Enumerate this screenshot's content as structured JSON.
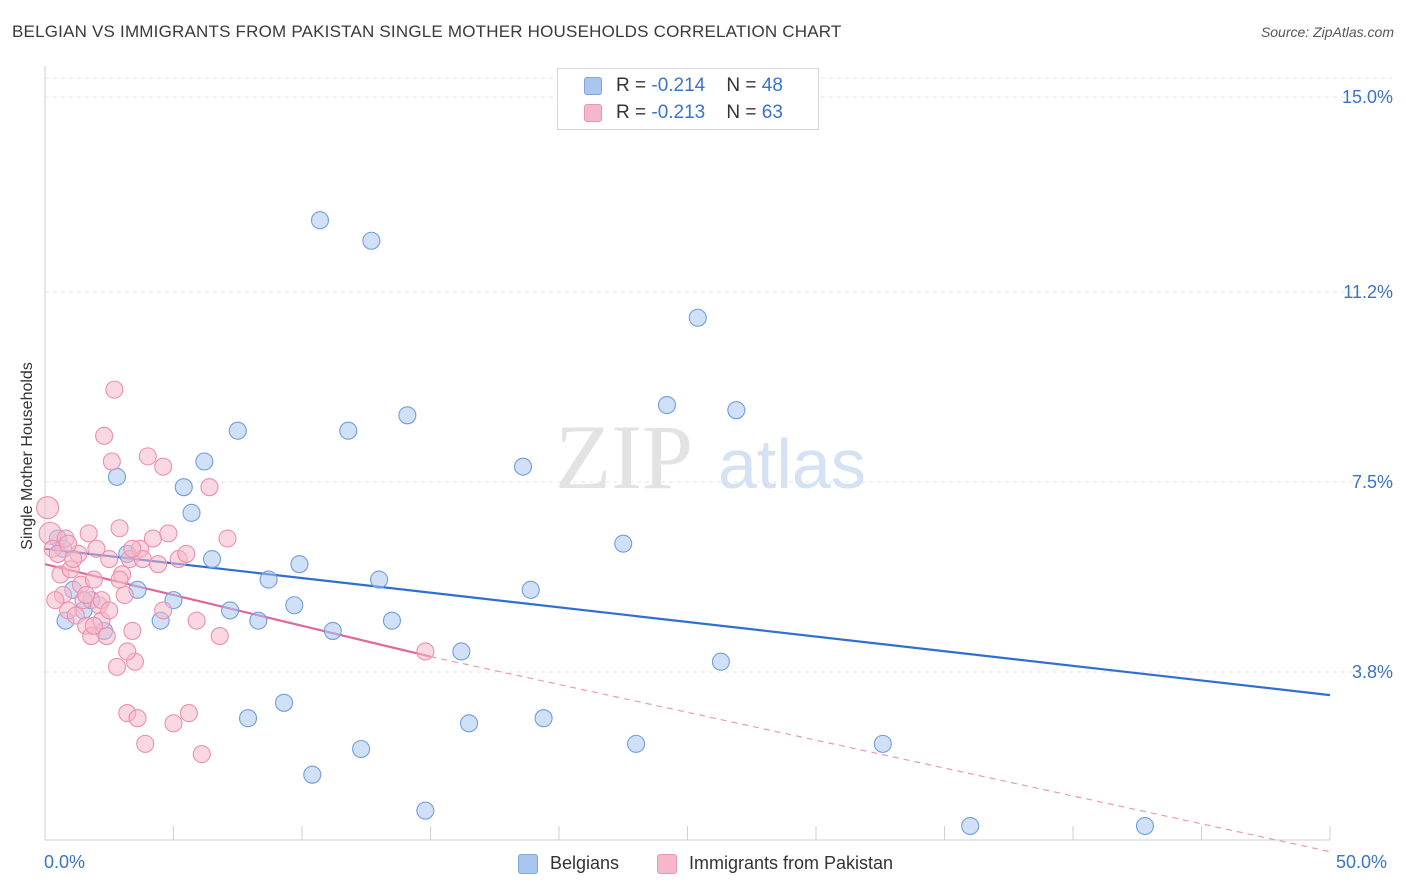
{
  "title": "BELGIAN VS IMMIGRANTS FROM PAKISTAN SINGLE MOTHER HOUSEHOLDS CORRELATION CHART",
  "source": "Source: ZipAtlas.com",
  "watermark": {
    "zip": "ZIP",
    "atlas": "atlas"
  },
  "legend_top": {
    "rows": [
      {
        "r_label": "R = ",
        "r_value": "-0.214",
        "n_label": "N = ",
        "n_value": "48",
        "color": "#a9c6ee"
      },
      {
        "r_label": "R = ",
        "r_value": "-0.213",
        "n_label": "N = ",
        "n_value": "63",
        "color": "#f5b8cb"
      }
    ]
  },
  "legend_bottom": [
    {
      "label": "Belgians",
      "color": "#a9c6ee"
    },
    {
      "label": "Immigrants from Pakistan",
      "color": "#f5b8cb"
    }
  ],
  "chart_data": {
    "type": "scatter",
    "title": "BELGIAN VS IMMIGRANTS FROM PAKISTAN SINGLE MOTHER HOUSEHOLDS CORRELATION CHART",
    "xlabel": "",
    "ylabel": "Single Mother Households",
    "x_tick_labels": [
      "0.0%",
      "50.0%"
    ],
    "y_tick_labels": [
      "15.0%",
      "11.2%",
      "7.5%",
      "3.8%"
    ],
    "y_ticks": [
      15.0,
      11.2,
      7.5,
      3.8
    ],
    "xlim": [
      0,
      50
    ],
    "ylim": [
      0.5,
      15.5
    ],
    "grid": "horizontal dashed",
    "legend_position": "top-center",
    "series": [
      {
        "name": "Belgians",
        "color": "#6f9ee0",
        "fill": "#a9c6ee",
        "trend": {
          "x0": 0,
          "y0": 6.2,
          "x1": 50,
          "y1": 3.35
        },
        "points": [
          [
            0.5,
            6.4
          ],
          [
            0.7,
            6.2
          ],
          [
            0.8,
            4.8
          ],
          [
            1.1,
            5.4
          ],
          [
            1.5,
            5.0
          ],
          [
            1.8,
            5.2
          ],
          [
            2.3,
            4.6
          ],
          [
            2.8,
            7.6
          ],
          [
            3.2,
            6.1
          ],
          [
            3.6,
            5.4
          ],
          [
            4.5,
            4.8
          ],
          [
            5.0,
            5.2
          ],
          [
            5.4,
            7.4
          ],
          [
            5.7,
            6.9
          ],
          [
            6.2,
            7.9
          ],
          [
            6.5,
            6.0
          ],
          [
            7.2,
            5.0
          ],
          [
            7.5,
            8.5
          ],
          [
            7.9,
            2.9
          ],
          [
            8.3,
            4.8
          ],
          [
            8.7,
            5.6
          ],
          [
            9.3,
            3.2
          ],
          [
            9.7,
            5.1
          ],
          [
            9.9,
            5.9
          ],
          [
            10.4,
            1.8
          ],
          [
            10.7,
            12.6
          ],
          [
            11.2,
            4.6
          ],
          [
            11.8,
            8.5
          ],
          [
            12.3,
            2.3
          ],
          [
            12.7,
            12.2
          ],
          [
            13.0,
            5.6
          ],
          [
            13.5,
            4.8
          ],
          [
            14.1,
            8.8
          ],
          [
            14.8,
            1.1
          ],
          [
            16.2,
            4.2
          ],
          [
            16.5,
            2.8
          ],
          [
            18.6,
            7.8
          ],
          [
            18.9,
            5.4
          ],
          [
            19.4,
            2.9
          ],
          [
            22.5,
            6.3
          ],
          [
            23.0,
            2.4
          ],
          [
            24.2,
            9.0
          ],
          [
            25.4,
            10.7
          ],
          [
            26.3,
            4.0
          ],
          [
            26.9,
            8.9
          ],
          [
            32.6,
            2.4
          ],
          [
            36.0,
            0.8
          ],
          [
            42.8,
            0.8
          ]
        ]
      },
      {
        "name": "Immigrants from Pakistan",
        "color": "#ec8fae",
        "fill": "#f5b8cb",
        "trend": {
          "x0": 0,
          "y0": 5.9,
          "x1": 15,
          "y1": 4.1
        },
        "trend_extension": {
          "x0": 15,
          "y0": 4.1,
          "x1": 50,
          "y1": 0.3
        },
        "points": [
          [
            0.1,
            7.0
          ],
          [
            0.2,
            6.5
          ],
          [
            0.3,
            6.2
          ],
          [
            0.5,
            6.1
          ],
          [
            0.6,
            5.7
          ],
          [
            0.7,
            5.3
          ],
          [
            0.8,
            6.4
          ],
          [
            0.9,
            5.0
          ],
          [
            1.0,
            5.8
          ],
          [
            1.2,
            4.9
          ],
          [
            1.3,
            6.1
          ],
          [
            1.4,
            5.5
          ],
          [
            1.5,
            5.2
          ],
          [
            1.6,
            4.7
          ],
          [
            1.7,
            6.5
          ],
          [
            1.8,
            4.5
          ],
          [
            1.9,
            5.6
          ],
          [
            2.0,
            6.2
          ],
          [
            2.1,
            5.1
          ],
          [
            2.2,
            4.8
          ],
          [
            2.3,
            8.4
          ],
          [
            2.4,
            4.5
          ],
          [
            2.5,
            6.0
          ],
          [
            2.6,
            7.9
          ],
          [
            2.7,
            9.3
          ],
          [
            2.8,
            3.9
          ],
          [
            2.9,
            6.6
          ],
          [
            3.0,
            5.7
          ],
          [
            3.1,
            5.3
          ],
          [
            3.2,
            3.0
          ],
          [
            3.3,
            6.0
          ],
          [
            3.4,
            4.6
          ],
          [
            3.5,
            4.0
          ],
          [
            3.6,
            2.9
          ],
          [
            3.7,
            6.2
          ],
          [
            3.8,
            6.0
          ],
          [
            3.9,
            2.4
          ],
          [
            4.0,
            8.0
          ],
          [
            4.2,
            6.4
          ],
          [
            4.4,
            5.9
          ],
          [
            4.6,
            7.8
          ],
          [
            4.8,
            6.5
          ],
          [
            5.0,
            2.8
          ],
          [
            5.2,
            6.0
          ],
          [
            5.6,
            3.0
          ],
          [
            5.9,
            4.8
          ],
          [
            6.1,
            2.2
          ],
          [
            6.4,
            7.4
          ],
          [
            6.8,
            4.5
          ],
          [
            7.1,
            6.4
          ],
          [
            2.2,
            5.2
          ],
          [
            1.1,
            6.0
          ],
          [
            0.4,
            5.2
          ],
          [
            1.6,
            5.3
          ],
          [
            2.9,
            5.6
          ],
          [
            3.4,
            6.2
          ],
          [
            1.9,
            4.7
          ],
          [
            0.9,
            6.3
          ],
          [
            4.6,
            5.0
          ],
          [
            5.5,
            6.1
          ],
          [
            3.2,
            4.2
          ],
          [
            2.5,
            5.0
          ],
          [
            14.8,
            4.2
          ]
        ]
      }
    ]
  }
}
